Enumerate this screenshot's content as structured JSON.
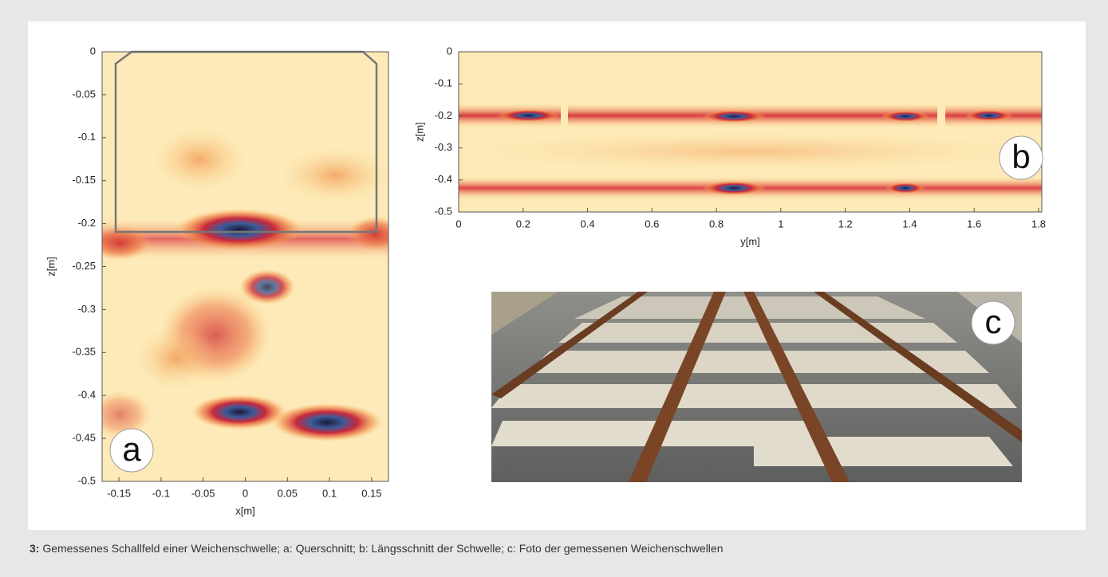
{
  "figure": {
    "number": "3:",
    "caption": "Gemessenes Schallfeld einer Weichenschwelle; a: Querschnitt; b: Längsschnitt der Schwelle; c: Foto der gemessenen Weichenschwellen",
    "panels": [
      {
        "letter": "a",
        "xlabel": "x[m]",
        "ylabel": "z[m]",
        "xlim": [
          -0.17,
          0.17
        ],
        "ylim": [
          -0.5,
          0
        ],
        "xticks": [
          -0.15,
          -0.1,
          -0.05,
          0,
          0.05,
          0.1,
          0.15
        ],
        "yticks": [
          0,
          -0.05,
          -0.1,
          -0.15,
          -0.2,
          -0.25,
          -0.3,
          -0.35,
          -0.4,
          -0.45,
          -0.5
        ]
      },
      {
        "letter": "b",
        "xlabel": "y[m]",
        "ylabel": "z[m]",
        "xlim": [
          0,
          1.81
        ],
        "ylim": [
          -0.5,
          0
        ],
        "xticks": [
          0,
          0.2,
          0.4,
          0.6,
          0.8,
          1,
          1.2,
          1.4,
          1.6,
          1.8
        ],
        "yticks": [
          0,
          -0.1,
          -0.2,
          -0.3,
          -0.4,
          -0.5
        ]
      },
      {
        "letter": "c"
      }
    ]
  }
}
